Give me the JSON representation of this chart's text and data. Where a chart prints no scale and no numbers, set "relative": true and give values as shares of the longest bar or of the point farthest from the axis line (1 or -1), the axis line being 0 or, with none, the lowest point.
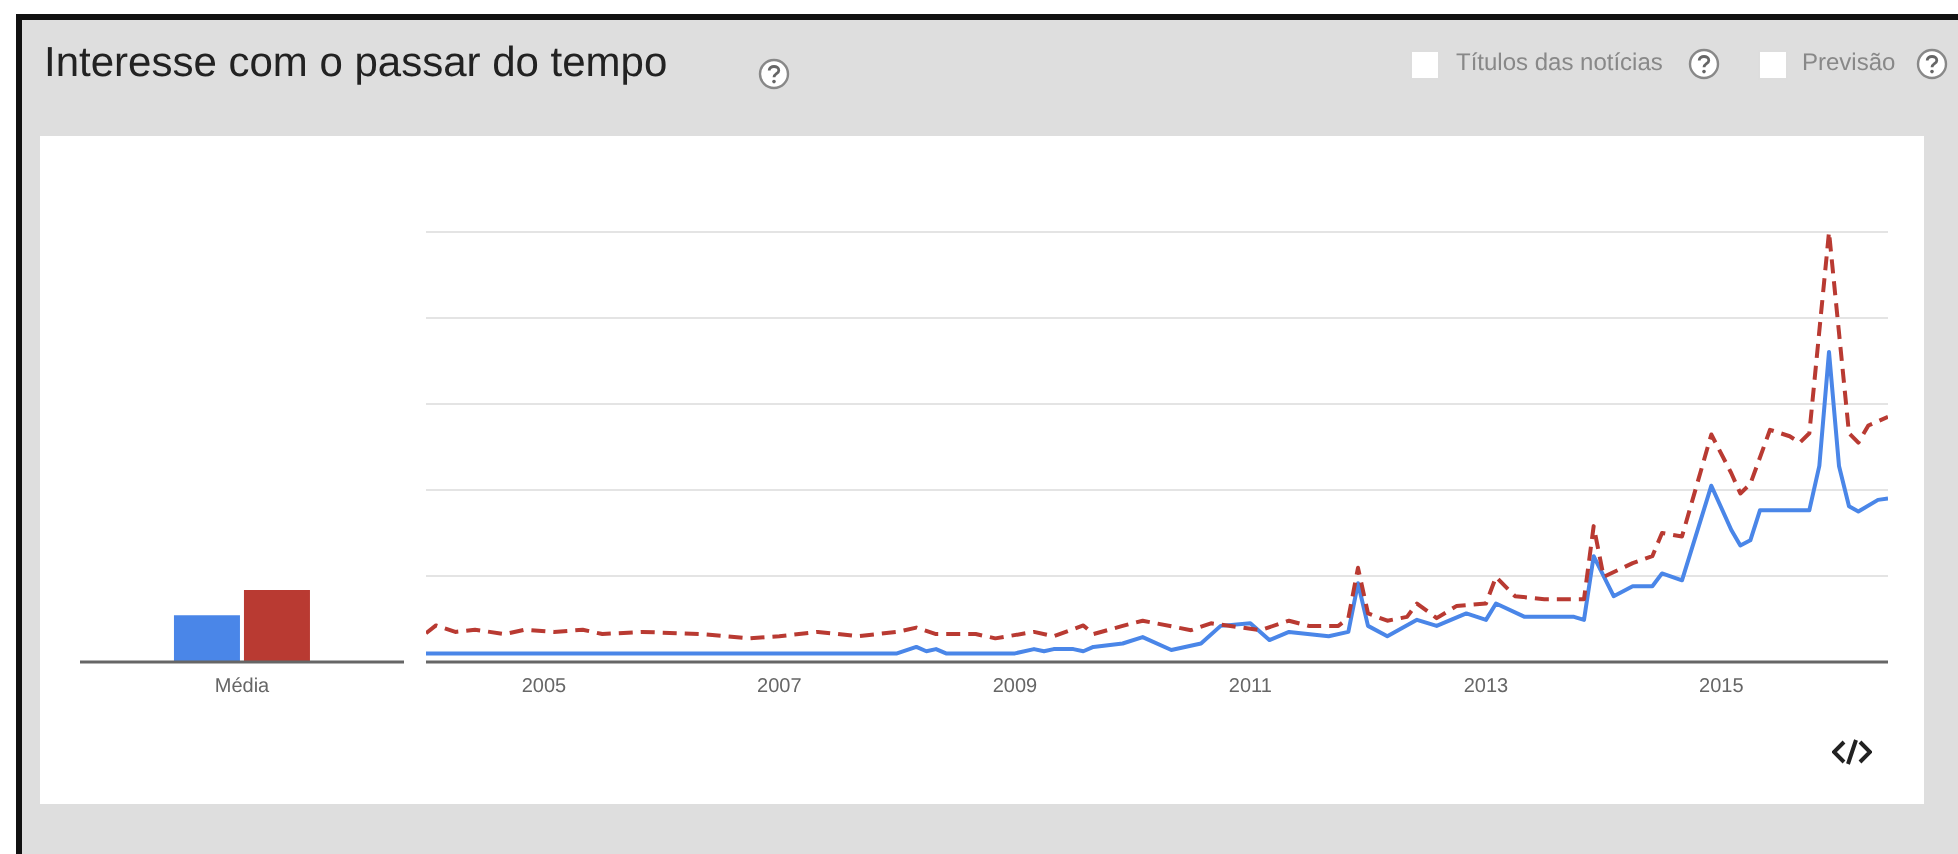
{
  "chart_data": [
    {
      "type": "bar",
      "relative": true,
      "categories": [
        "Média"
      ],
      "series": [
        {
          "color": "#4a86e8",
          "values": [
            0.65
          ]
        },
        {
          "color": "#b93a32",
          "values": [
            1
          ]
        }
      ]
    },
    {
      "type": "line",
      "title": "Interesse com o passar do tempo",
      "annotations": [
        "Títulos das notícias",
        "Previsão"
      ],
      "relative": true,
      "grid": "y",
      "xlim": [
        "2004-01",
        "2016-06"
      ],
      "xticks": [
        "2005",
        "2007",
        "2009",
        "2011",
        "2013",
        "2015"
      ],
      "series": [
        {
          "color": "#4a86e8",
          "line_style": "solid",
          "x": [
            "2004-01",
            "2005-01",
            "2006-01",
            "2007-01",
            "2008-01",
            "2008-03",
            "2008-04",
            "2008-05",
            "2008-06",
            "2009-01",
            "2009-03",
            "2009-04",
            "2009-05",
            "2009-07",
            "2009-08",
            "2009-09",
            "2009-12",
            "2010-02",
            "2010-05",
            "2010-08",
            "2010-10",
            "2011-01",
            "2011-03",
            "2011-05",
            "2011-09",
            "2011-11",
            "2011-12",
            "2012-01",
            "2012-03",
            "2012-06",
            "2012-08",
            "2012-11",
            "2013-01",
            "2013-02",
            "2013-05",
            "2013-10",
            "2013-11",
            "2013-12",
            "2014-02",
            "2014-04",
            "2014-06",
            "2014-07",
            "2014-09",
            "2014-12",
            "2015-02",
            "2015-03",
            "2015-04",
            "2015-05",
            "2015-10",
            "2015-11",
            "2015-12",
            "2016-01",
            "2016-02",
            "2016-03",
            "2016-05",
            "2016-06"
          ],
          "values": [
            0.02,
            0.02,
            0.02,
            0.02,
            0.02,
            0.035,
            0.025,
            0.03,
            0.02,
            0.02,
            0.03,
            0.025,
            0.03,
            0.03,
            0.025,
            0.035,
            0.043,
            0.058,
            0.028,
            0.043,
            0.084,
            0.09,
            0.051,
            0.07,
            0.06,
            0.07,
            0.183,
            0.084,
            0.06,
            0.098,
            0.084,
            0.113,
            0.098,
            0.136,
            0.105,
            0.105,
            0.098,
            0.246,
            0.153,
            0.176,
            0.176,
            0.206,
            0.19,
            0.41,
            0.307,
            0.271,
            0.283,
            0.353,
            0.353,
            0.456,
            0.721,
            0.456,
            0.362,
            0.35,
            0.377,
            0.38
          ]
        },
        {
          "color": "#b93a32",
          "line_style": "dashed",
          "x": [
            "2004-01",
            "2004-02",
            "2004-04",
            "2004-06",
            "2004-09",
            "2004-11",
            "2005-02",
            "2005-05",
            "2005-07",
            "2005-11",
            "2006-05",
            "2006-10",
            "2007-01",
            "2007-05",
            "2007-09",
            "2008-01",
            "2008-03",
            "2008-05",
            "2008-09",
            "2008-11",
            "2009-03",
            "2009-05",
            "2009-08",
            "2009-09",
            "2009-12",
            "2010-02",
            "2010-07",
            "2010-09",
            "2011-02",
            "2011-05",
            "2011-07",
            "2011-10",
            "2011-11",
            "2011-12",
            "2012-01",
            "2012-03",
            "2012-05",
            "2012-06",
            "2012-08",
            "2012-10",
            "2013-01",
            "2013-02",
            "2013-04",
            "2013-07",
            "2013-11",
            "2013-12",
            "2014-01",
            "2014-04",
            "2014-06",
            "2014-07",
            "2014-09",
            "2014-12",
            "2015-02",
            "2015-03",
            "2015-04",
            "2015-06",
            "2015-08",
            "2015-09",
            "2015-10",
            "2015-12",
            "2016-02",
            "2016-03",
            "2016-04",
            "2016-06"
          ],
          "values": [
            0.067,
            0.085,
            0.07,
            0.075,
            0.065,
            0.075,
            0.07,
            0.075,
            0.065,
            0.07,
            0.065,
            0.055,
            0.06,
            0.07,
            0.06,
            0.07,
            0.08,
            0.065,
            0.065,
            0.055,
            0.07,
            0.06,
            0.085,
            0.065,
            0.084,
            0.096,
            0.074,
            0.09,
            0.074,
            0.096,
            0.084,
            0.084,
            0.102,
            0.219,
            0.113,
            0.096,
            0.105,
            0.136,
            0.102,
            0.13,
            0.136,
            0.198,
            0.153,
            0.146,
            0.146,
            0.316,
            0.198,
            0.23,
            0.246,
            0.3,
            0.292,
            0.529,
            0.439,
            0.392,
            0.414,
            0.54,
            0.525,
            0.51,
            0.532,
            1,
            0.532,
            0.51,
            0.55,
            0.57
          ]
        }
      ]
    }
  ]
}
